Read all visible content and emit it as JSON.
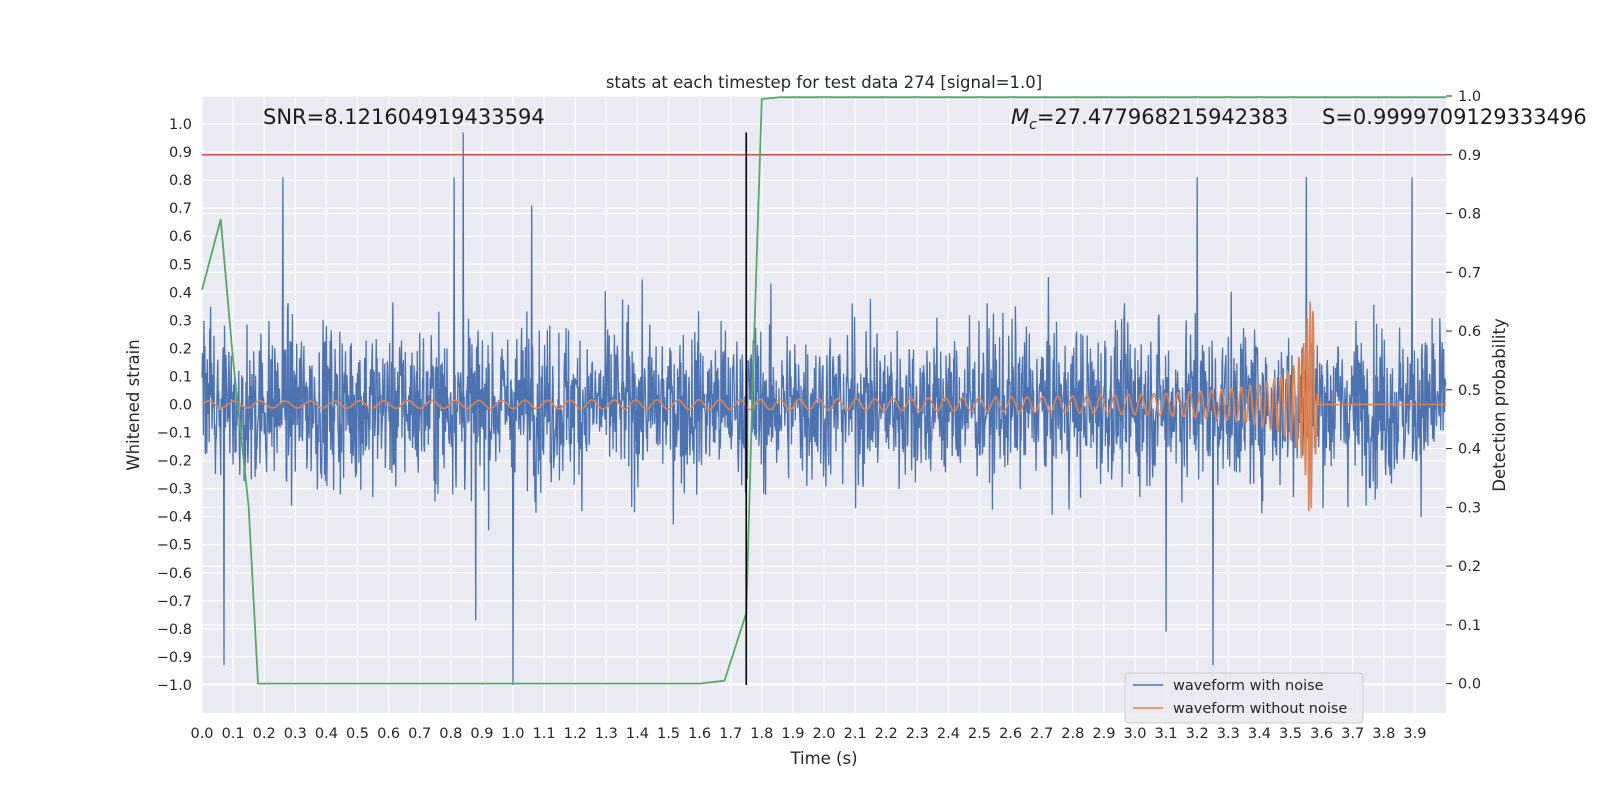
{
  "chart_data": {
    "type": "line",
    "title": "stats at each timestep for test data 274 [signal=1.0]",
    "xlabel": "Time (s)",
    "ylabel": "Whitened strain",
    "y2label": "Detection probability",
    "xlim": [
      0.0,
      4.0
    ],
    "ylim": [
      -1.1,
      1.1
    ],
    "y2lim": [
      -0.05,
      1.0
    ],
    "x_ticks": [
      "0.0",
      "0.1",
      "0.2",
      "0.3",
      "0.4",
      "0.5",
      "0.6",
      "0.7",
      "0.8",
      "0.9",
      "1.0",
      "1.1",
      "1.2",
      "1.3",
      "1.4",
      "1.5",
      "1.6",
      "1.7",
      "1.8",
      "1.9",
      "2.0",
      "2.1",
      "2.2",
      "2.3",
      "2.4",
      "2.5",
      "2.6",
      "2.7",
      "2.8",
      "2.9",
      "3.0",
      "3.1",
      "3.2",
      "3.3",
      "3.4",
      "3.5",
      "3.6",
      "3.7",
      "3.8",
      "3.9"
    ],
    "y_ticks": [
      "1.0",
      "0.9",
      "0.8",
      "0.7",
      "0.6",
      "0.5",
      "0.4",
      "0.3",
      "0.2",
      "0.1",
      "0.0",
      "−0.1",
      "−0.2",
      "−0.3",
      "−0.4",
      "−0.5",
      "−0.6",
      "−0.7",
      "−0.8",
      "−0.9",
      "−1.0"
    ],
    "y2_ticks": [
      "1.0",
      "0.9",
      "0.8",
      "0.7",
      "0.6",
      "0.5",
      "0.4",
      "0.3",
      "0.2",
      "0.1",
      "0.0"
    ],
    "grid": true,
    "legend_position": "lower-right",
    "annotations": {
      "snr": "SNR=8.121604919433594",
      "mc_symbol": "M",
      "mc_subscript": "c",
      "mc_value": "=27.477968215942383",
      "s": "S=0.9999709129333496"
    },
    "series": [
      {
        "name": "waveform with noise",
        "color": "#4c72b0",
        "axis": "left",
        "description": "dense noisy strain signal, roughly within -0.6..0.6 with spikes",
        "spikes": [
          {
            "x": 0.07,
            "y": -0.93
          },
          {
            "x": 0.26,
            "y": 0.81
          },
          {
            "x": 0.81,
            "y": 0.81
          },
          {
            "x": 0.84,
            "y": 0.97
          },
          {
            "x": 0.88,
            "y": -0.77
          },
          {
            "x": 1.0,
            "y": -1.0
          },
          {
            "x": 1.06,
            "y": 0.71
          },
          {
            "x": 3.1,
            "y": -0.81
          },
          {
            "x": 3.2,
            "y": 0.81
          },
          {
            "x": 3.25,
            "y": -0.93
          },
          {
            "x": 3.55,
            "y": 0.81
          },
          {
            "x": 3.89,
            "y": 0.81
          }
        ]
      },
      {
        "name": "waveform without noise",
        "color": "#dd8452",
        "axis": "left",
        "description": "chirp signal with growing amplitude and frequency, merging near 3.57 s",
        "merger_time": 3.57,
        "peak_amplitude": 0.38
      },
      {
        "name": "",
        "color": "#55a868",
        "axis": "right",
        "x": [
          0.0,
          0.06,
          0.1,
          0.15,
          0.18,
          0.25,
          0.5,
          1.0,
          1.4,
          1.6,
          1.68,
          1.75,
          1.77,
          1.8,
          1.86,
          2.5,
          3.0,
          4.0
        ],
        "y": [
          0.67,
          0.79,
          0.55,
          0.3,
          0.0,
          -0.0,
          0.0,
          0.0,
          0.0,
          0.0,
          0.005,
          0.12,
          0.5,
          0.995,
          0.998,
          0.998,
          0.998,
          0.998
        ]
      }
    ],
    "hlines": [
      {
        "axis": "right",
        "y": 0.9,
        "color": "#c44e52"
      }
    ],
    "vlines": [
      {
        "x": 1.75,
        "color": "#000000",
        "ymin": -1.0,
        "ymax": 0.97
      }
    ]
  }
}
